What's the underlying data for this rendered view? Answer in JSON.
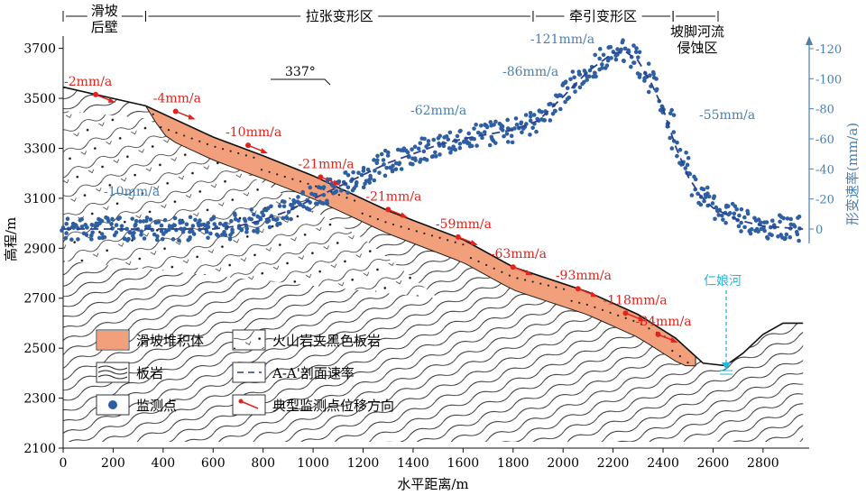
{
  "zones": [
    {
      "label": "滑坡\n后壁",
      "from": 0,
      "to": 330
    },
    {
      "label": "拉张变形区",
      "from": 330,
      "to": 1880
    },
    {
      "label": "牵引变形区",
      "from": 1880,
      "to": 2440
    },
    {
      "label": "坡脚河流\n侵蚀区",
      "from": 2440,
      "to": 2620
    }
  ],
  "chart_data": {
    "type": "scatter",
    "xlabel": "水平距离/m",
    "ylabel": "高程/m",
    "y2label": "形变速率(mm/a)",
    "xlim": [
      0,
      2960
    ],
    "ylim": [
      2100,
      3750
    ],
    "y2lim": [
      10,
      -130
    ],
    "xticks": [
      0,
      200,
      400,
      600,
      800,
      1000,
      1200,
      1400,
      1600,
      1800,
      2000,
      2200,
      2400,
      2600,
      2800
    ],
    "yticks": [
      2100,
      2300,
      2500,
      2700,
      2900,
      3100,
      3300,
      3500,
      3700
    ],
    "y2ticks": [
      0,
      -20,
      -40,
      -60,
      -80,
      -100,
      -120
    ],
    "terrain": [
      [
        0,
        3545
      ],
      [
        330,
        3470
      ],
      [
        600,
        3345
      ],
      [
        800,
        3270
      ],
      [
        1000,
        3190
      ],
      [
        1300,
        3050
      ],
      [
        1600,
        2935
      ],
      [
        1800,
        2825
      ],
      [
        2100,
        2725
      ],
      [
        2300,
        2635
      ],
      [
        2450,
        2540
      ],
      [
        2560,
        2440
      ],
      [
        2650,
        2430
      ],
      [
        2720,
        2480
      ],
      [
        2800,
        2555
      ],
      [
        2880,
        2600
      ],
      [
        2960,
        2600
      ]
    ],
    "velocity_profile": {
      "name": "A-A'剖面速率",
      "x": [
        0,
        300,
        600,
        700,
        800,
        900,
        1000,
        1100,
        1200,
        1300,
        1400,
        1500,
        1600,
        1700,
        1800,
        1900,
        2000,
        2100,
        2200,
        2250,
        2300,
        2350,
        2400,
        2450,
        2500,
        2550,
        2600,
        2700,
        2800,
        2960
      ],
      "y": [
        0,
        0,
        0,
        -2,
        -6,
        -12,
        -20,
        -28,
        -36,
        -44,
        -50,
        -56,
        -60,
        -63,
        -66,
        -72,
        -88,
        -105,
        -117,
        -118,
        -112,
        -98,
        -80,
        -55,
        -35,
        -22,
        -14,
        -6,
        -2,
        0
      ]
    },
    "monitoring_points": [
      {
        "x": 130,
        "e": 3515,
        "label": "-2mm/a"
      },
      {
        "x": 450,
        "e": 3448,
        "label": "-4mm/a"
      },
      {
        "x": 740,
        "e": 3312,
        "label": "-10mm/a"
      },
      {
        "x": 1030,
        "e": 3185,
        "label": "-21mm/a"
      },
      {
        "x": 1300,
        "e": 3055,
        "label": "-21mm/a"
      },
      {
        "x": 1580,
        "e": 2945,
        "label": "-59mm/a"
      },
      {
        "x": 1800,
        "e": 2825,
        "label": "-63mm/a"
      },
      {
        "x": 2060,
        "e": 2738,
        "label": "-93mm/a"
      },
      {
        "x": 2250,
        "e": 2640,
        "label": "-118mm/a"
      },
      {
        "x": 2380,
        "e": 2555,
        "label": "-84mm/a"
      }
    ],
    "profile_labels": [
      "-10mm/a",
      "-62mm/a",
      "-86mm/a",
      "-121mm/a",
      "-55mm/a"
    ]
  },
  "orientation": "337°",
  "river": "仁娘河",
  "legend": [
    {
      "key": "deposit",
      "label": "滑坡堆积体"
    },
    {
      "key": "volcanic",
      "label": "火山岩夹黑色板岩"
    },
    {
      "key": "slate",
      "label": "板岩"
    },
    {
      "key": "dash",
      "label": "A-A'剖面速率"
    },
    {
      "key": "dot",
      "label": "监测点"
    },
    {
      "key": "arrow",
      "label": "典型监测点位移方向"
    }
  ],
  "colors": {
    "deposit": "#f2a07b",
    "dots": "#2e5fa3",
    "red": "#e0231c",
    "blue_label": "#4a7fb0",
    "river": "#29b6d8"
  }
}
